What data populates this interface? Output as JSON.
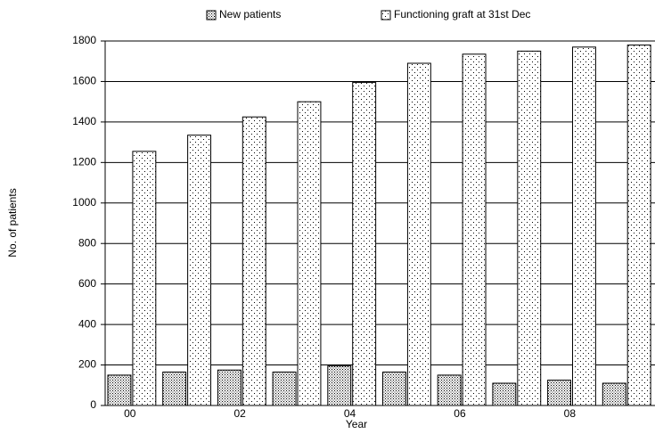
{
  "chart_data": {
    "type": "bar",
    "x_label": "Year",
    "y_label": "No. of patients",
    "categories": [
      "00",
      null,
      "02",
      null,
      "04",
      null,
      "06",
      null,
      "08",
      null
    ],
    "series": [
      {
        "name": "New patients",
        "values": [
          150,
          165,
          175,
          165,
          195,
          165,
          150,
          110,
          125,
          110
        ]
      },
      {
        "name": "Functioning graft at 31st Dec",
        "values": [
          1255,
          1335,
          1425,
          1500,
          1595,
          1690,
          1735,
          1750,
          1770,
          1780
        ]
      }
    ],
    "ylim": [
      0,
      1800
    ],
    "yticks": [
      0,
      200,
      400,
      600,
      800,
      1000,
      1200,
      1400,
      1600,
      1800
    ],
    "grid": true,
    "legend": "top"
  }
}
